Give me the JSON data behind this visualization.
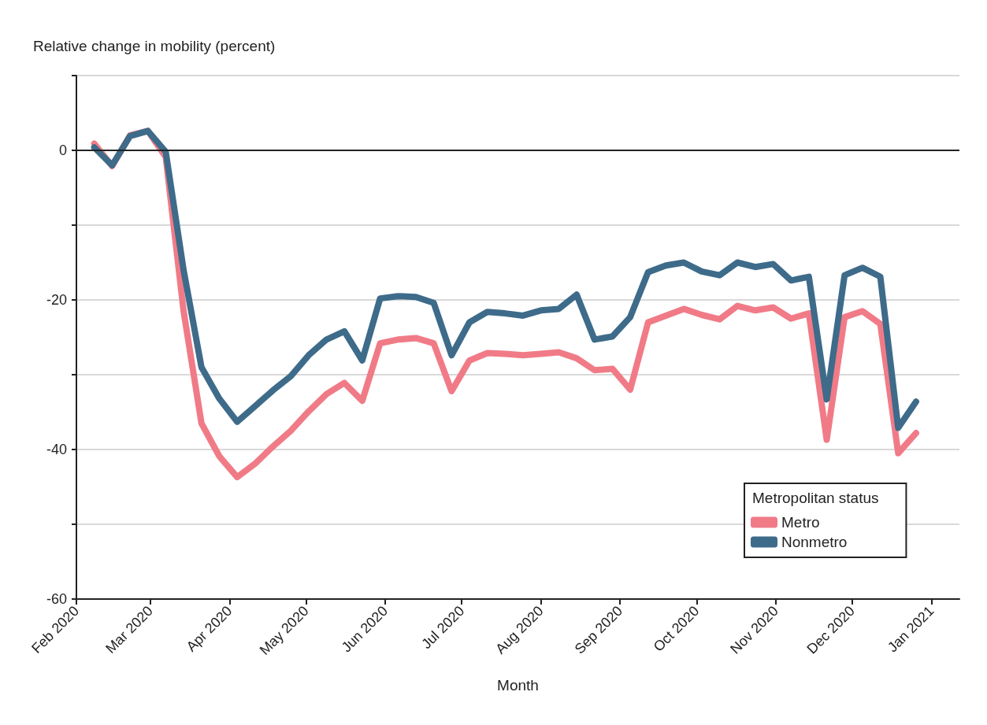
{
  "chart_data": {
    "type": "line",
    "ylabel": "Relative change in mobility (percent)",
    "xlabel": "Month",
    "x": [
      "2020-02-08",
      "2020-02-15",
      "2020-02-22",
      "2020-02-29",
      "2020-03-07",
      "2020-03-14",
      "2020-03-21",
      "2020-03-28",
      "2020-04-04",
      "2020-04-11",
      "2020-04-18",
      "2020-04-25",
      "2020-05-02",
      "2020-05-09",
      "2020-05-16",
      "2020-05-23",
      "2020-05-30",
      "2020-06-06",
      "2020-06-13",
      "2020-06-20",
      "2020-06-27",
      "2020-07-04",
      "2020-07-11",
      "2020-07-18",
      "2020-07-25",
      "2020-08-01",
      "2020-08-08",
      "2020-08-15",
      "2020-08-22",
      "2020-08-29",
      "2020-09-05",
      "2020-09-12",
      "2020-09-19",
      "2020-09-26",
      "2020-10-03",
      "2020-10-10",
      "2020-10-17",
      "2020-10-24",
      "2020-10-31",
      "2020-11-07",
      "2020-11-14",
      "2020-11-21",
      "2020-11-28",
      "2020-12-05",
      "2020-12-12",
      "2020-12-19",
      "2020-12-26"
    ],
    "series": [
      {
        "name": "Metro",
        "color": "#f07b87",
        "values": [
          0.9,
          -2.1,
          2,
          2.6,
          -0.9,
          -21.5,
          -36.5,
          -40.9,
          -43.7,
          -41.9,
          -39.6,
          -37.5,
          -34.9,
          -32.6,
          -31.1,
          -33.5,
          -25.8,
          -25.3,
          -25.1,
          -25.8,
          -32.2,
          -28.1,
          -27.1,
          -27.2,
          -27.4,
          -27.2,
          -27,
          -27.8,
          -29.4,
          -29.2,
          -32,
          -23,
          -22.1,
          -21.2,
          -22,
          -22.6,
          -20.8,
          -21.4,
          -21,
          -22.5,
          -21.8,
          -38.7,
          -22.3,
          -21.5,
          -23.2,
          -40.5,
          -37.8
        ]
      },
      {
        "name": "Nonmetro",
        "color": "#3e6b8a",
        "values": [
          0.4,
          -2,
          1.9,
          2.6,
          -0.2,
          -16,
          -29,
          -33.2,
          -36.3,
          -34.2,
          -32.1,
          -30.2,
          -27.4,
          -25.3,
          -24.2,
          -28.1,
          -19.8,
          -19.5,
          -19.6,
          -20.4,
          -27.4,
          -23,
          -21.6,
          -21.8,
          -22.1,
          -21.4,
          -21.2,
          -19.3,
          -25.3,
          -24.9,
          -22.3,
          -16.3,
          -15.4,
          -15,
          -16.2,
          -16.7,
          -15,
          -15.6,
          -15.2,
          -17.4,
          -16.9,
          -33.3,
          -16.7,
          -15.7,
          -16.9,
          -37.1,
          -33.6
        ]
      }
    ],
    "xlim": [
      "2020-02-01",
      "2021-01-12"
    ],
    "xticks": [
      {
        "value": "2020-02-01",
        "label": "Feb 2020"
      },
      {
        "value": "2020-03-01",
        "label": "Mar 2020"
      },
      {
        "value": "2020-04-01",
        "label": "Apr 2020"
      },
      {
        "value": "2020-05-01",
        "label": "May 2020"
      },
      {
        "value": "2020-06-01",
        "label": "Jun 2020"
      },
      {
        "value": "2020-07-01",
        "label": "Jul 2020"
      },
      {
        "value": "2020-08-01",
        "label": "Aug 2020"
      },
      {
        "value": "2020-09-01",
        "label": "Sep 2020"
      },
      {
        "value": "2020-10-01",
        "label": "Oct 2020"
      },
      {
        "value": "2020-11-01",
        "label": "Nov 2020"
      },
      {
        "value": "2020-12-01",
        "label": "Dec 2020"
      },
      {
        "value": "2021-01-01",
        "label": "Jan 2021"
      }
    ],
    "ylim": [
      -60,
      10
    ],
    "yticks": [
      {
        "value": 10,
        "label": null
      },
      0,
      {
        "value": -10,
        "label": null
      },
      -20,
      {
        "value": -30,
        "label": null
      },
      -40,
      {
        "value": -50,
        "label": null
      },
      -60
    ],
    "ref_lines": [
      {
        "axis": "y",
        "value": 0,
        "color": "#222222"
      }
    ],
    "grid": "y",
    "legend": "bottom right",
    "legend_title": "Metropolitan status",
    "marker": "none",
    "line_style": "solid"
  }
}
